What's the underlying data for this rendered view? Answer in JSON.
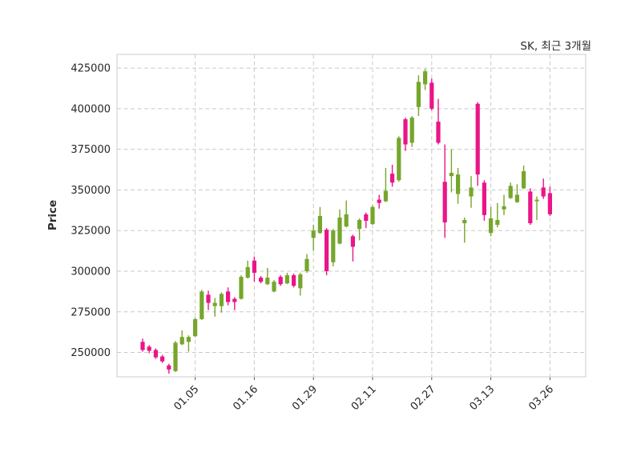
{
  "window": {
    "background": "#ffffff"
  },
  "chart_data": {
    "type": "candlestick",
    "title": "SK, 최근 3개월",
    "ylabel": "Price",
    "yticks": [
      250000,
      275000,
      300000,
      325000,
      350000,
      375000,
      400000,
      425000
    ],
    "ylim": [
      235000,
      433400
    ],
    "grid": "dashed",
    "legend": "none",
    "xticks": [
      {
        "index": 8,
        "label": "01.05"
      },
      {
        "index": 17,
        "label": "01.16"
      },
      {
        "index": 26,
        "label": "01.29"
      },
      {
        "index": 35,
        "label": "02.11"
      },
      {
        "index": 44,
        "label": "02.27"
      },
      {
        "index": 53,
        "label": "03.13"
      },
      {
        "index": 62,
        "label": "03.26"
      }
    ],
    "colors": {
      "up": "#76a62c",
      "down": "#ea1588",
      "grid": "#c9c9c9",
      "spine": "#d4d4d4",
      "tick": "#555555",
      "text": "#262626"
    },
    "candle_format": "ohlc",
    "candles": [
      [
        256500,
        258500,
        250500,
        251500
      ],
      [
        253500,
        254500,
        249500,
        251000
      ],
      [
        251500,
        252500,
        246000,
        247000
      ],
      [
        247500,
        248500,
        243500,
        244500
      ],
      [
        242000,
        243000,
        237000,
        239500
      ],
      [
        238500,
        257000,
        238000,
        256000
      ],
      [
        255000,
        263500,
        254500,
        259500
      ],
      [
        256500,
        260500,
        250500,
        259500
      ],
      [
        260000,
        271500,
        259500,
        270500
      ],
      [
        270500,
        288500,
        270000,
        287500
      ],
      [
        285500,
        288000,
        276000,
        280500
      ],
      [
        278500,
        283500,
        272000,
        280500
      ],
      [
        278500,
        287000,
        274500,
        286000
      ],
      [
        287500,
        290000,
        279000,
        281000
      ],
      [
        283000,
        284000,
        276000,
        281000
      ],
      [
        283000,
        297500,
        282500,
        296500
      ],
      [
        296000,
        306500,
        295500,
        302500
      ],
      [
        306500,
        309000,
        293500,
        299000
      ],
      [
        296000,
        297000,
        292500,
        293500
      ],
      [
        292000,
        302000,
        291500,
        296000
      ],
      [
        287500,
        294500,
        287000,
        293500
      ],
      [
        296500,
        297500,
        291000,
        292000
      ],
      [
        292500,
        299000,
        292000,
        297500
      ],
      [
        297500,
        298500,
        290000,
        291000
      ],
      [
        289500,
        299000,
        285000,
        298000
      ],
      [
        300000,
        310500,
        299000,
        307500
      ],
      [
        320500,
        328500,
        312500,
        325000
      ],
      [
        323500,
        339500,
        323000,
        334000
      ],
      [
        325500,
        326500,
        297500,
        300000
      ],
      [
        305500,
        326000,
        303000,
        325000
      ],
      [
        317000,
        338000,
        316500,
        333000
      ],
      [
        327500,
        343500,
        327000,
        335000
      ],
      [
        321500,
        322500,
        306000,
        315000
      ],
      [
        326000,
        332500,
        319000,
        331500
      ],
      [
        335000,
        336000,
        326500,
        331000
      ],
      [
        329000,
        340500,
        328500,
        339500
      ],
      [
        344000,
        347000,
        338500,
        342000
      ],
      [
        343000,
        363500,
        342500,
        349500
      ],
      [
        360000,
        365500,
        352000,
        354500
      ],
      [
        356000,
        383000,
        355000,
        382000
      ],
      [
        393500,
        394500,
        374000,
        378000
      ],
      [
        379000,
        395500,
        376500,
        394500
      ],
      [
        401000,
        420500,
        395500,
        416500
      ],
      [
        415000,
        424500,
        411500,
        423000
      ],
      [
        416000,
        418500,
        399000,
        400000
      ],
      [
        392000,
        406000,
        378000,
        379000
      ],
      [
        355000,
        378000,
        320500,
        330000
      ],
      [
        358500,
        375000,
        348500,
        360500
      ],
      [
        347500,
        363500,
        341500,
        359500
      ],
      [
        329500,
        333000,
        317500,
        331500
      ],
      [
        346000,
        358500,
        339000,
        351500
      ],
      [
        403000,
        404000,
        352500,
        359500
      ],
      [
        354500,
        356000,
        331000,
        334500
      ],
      [
        323500,
        339500,
        321500,
        332500
      ],
      [
        328500,
        342000,
        327000,
        331500
      ],
      [
        338000,
        347000,
        334500,
        340000
      ],
      [
        345000,
        354500,
        344500,
        352500
      ],
      [
        342500,
        353500,
        342000,
        347000
      ],
      [
        351000,
        365000,
        350500,
        361500
      ],
      [
        349000,
        351000,
        328500,
        329500
      ],
      [
        343500,
        346000,
        331500,
        344000
      ],
      [
        351500,
        357000,
        344500,
        346000
      ],
      [
        348000,
        352000,
        334000,
        335000
      ]
    ]
  }
}
